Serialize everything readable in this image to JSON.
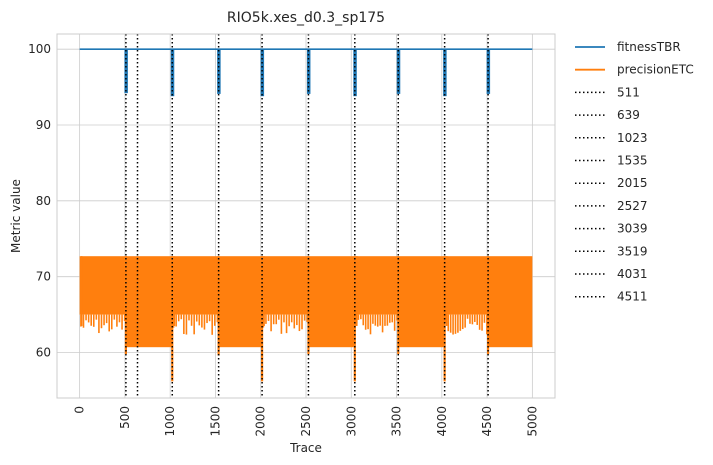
{
  "chart_data": {
    "type": "line",
    "title": "RIO5k.xes_d0.3_sp175",
    "xlabel": "Trace",
    "ylabel": "Metric value",
    "xlim": [
      -250,
      5250
    ],
    "ylim": [
      54,
      102
    ],
    "xticks": [
      "0",
      "500",
      "1000",
      "1500",
      "2000",
      "2500",
      "3000",
      "3500",
      "4000",
      "4500",
      "5000"
    ],
    "yticks": [
      "60",
      "70",
      "80",
      "90",
      "100"
    ],
    "grid": true,
    "legend_position": "outside-right",
    "series": [
      {
        "name": "fitnessTBR",
        "color": "#1f77b4",
        "baseline": 100,
        "dips": [
          {
            "x": 511,
            "min": 94.2
          },
          {
            "x": 1023,
            "min": 93.8
          },
          {
            "x": 1535,
            "min": 94.1
          },
          {
            "x": 2015,
            "min": 93.8
          },
          {
            "x": 2527,
            "min": 94.1
          },
          {
            "x": 3039,
            "min": 93.8
          },
          {
            "x": 3519,
            "min": 94.1
          },
          {
            "x": 4031,
            "min": 93.8
          },
          {
            "x": 4511,
            "min": 94.1
          }
        ]
      },
      {
        "name": "precisionETC",
        "color": "#ff7f0e",
        "upper": 72.7,
        "segments": [
          {
            "x0": 0,
            "x1": 511,
            "lower": 65.0,
            "spiky": true
          },
          {
            "x0": 511,
            "x1": 1023,
            "lower": 60.7,
            "spiky": false
          },
          {
            "x0": 1023,
            "x1": 1535,
            "lower": 65.0,
            "spiky": true
          },
          {
            "x0": 1535,
            "x1": 2015,
            "lower": 60.7,
            "spiky": false
          },
          {
            "x0": 2015,
            "x1": 2527,
            "lower": 65.0,
            "spiky": true
          },
          {
            "x0": 2527,
            "x1": 3039,
            "lower": 60.7,
            "spiky": false
          },
          {
            "x0": 3039,
            "x1": 3519,
            "lower": 65.0,
            "spiky": true
          },
          {
            "x0": 3519,
            "x1": 4031,
            "lower": 60.7,
            "spiky": false
          },
          {
            "x0": 4031,
            "x1": 4511,
            "lower": 65.0,
            "spiky": true
          },
          {
            "x0": 4511,
            "x1": 5000,
            "lower": 60.7,
            "spiky": false
          }
        ],
        "drops": [
          {
            "x": 511,
            "min": 59.8
          },
          {
            "x": 1023,
            "min": 56.2
          },
          {
            "x": 1535,
            "min": 59.6
          },
          {
            "x": 2015,
            "min": 56.2
          },
          {
            "x": 2527,
            "min": 59.8
          },
          {
            "x": 3039,
            "min": 56.2
          },
          {
            "x": 3519,
            "min": 59.8
          },
          {
            "x": 4031,
            "min": 56.2
          },
          {
            "x": 4511,
            "min": 59.8
          }
        ]
      }
    ],
    "vlines": [
      "511",
      "639",
      "1023",
      "1535",
      "2015",
      "2527",
      "3039",
      "3519",
      "4031",
      "4511"
    ]
  }
}
